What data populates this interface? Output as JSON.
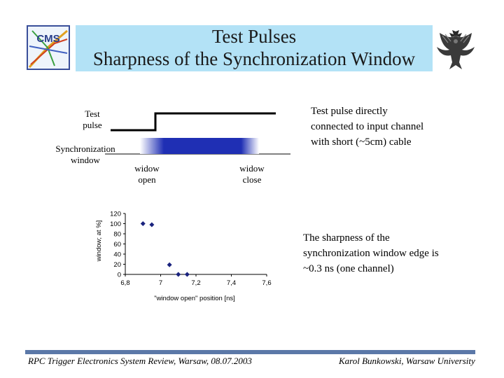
{
  "title": {
    "line1": "Test Pulses",
    "line2": "Sharpness of the Synchronization Window"
  },
  "logos": {
    "left": "CMS",
    "right": "eagle-emblem"
  },
  "diagram": {
    "test_pulse_label": "Test pulse",
    "sync_window_label": "Synchronization window",
    "window_open_label": "widow open",
    "window_close_label": "widow close",
    "window_color": "#1f2fb4"
  },
  "notes": {
    "top_right": "Test pulse directly connected to input channel with short (~5cm) cable",
    "bottom_right": "The sharpness of the synchronization window edge is ~0.3 ns (one channel)"
  },
  "footer": {
    "left": "RPC Trigger Electronics System Review, Warsaw, 08.07.2003",
    "right": "Karol Bunkowski, Warsaw University"
  },
  "chart_data": {
    "type": "scatter",
    "x": [
      6.9,
      6.95,
      7.05,
      7.1,
      7.15
    ],
    "y": [
      100,
      98,
      19,
      0,
      0
    ],
    "xlim": [
      6.8,
      7.6
    ],
    "ylim": [
      0,
      120
    ],
    "xticks": [
      "6,8",
      "7",
      "7,2",
      "7,4",
      "7,6"
    ],
    "yticks": [
      "0",
      "20",
      "40",
      "60",
      "80",
      "100",
      "120"
    ],
    "xlabel": "\"window open\" position [ns]",
    "ylabel": "window; at %]",
    "marker_color": "#1a237e",
    "grid": false
  }
}
